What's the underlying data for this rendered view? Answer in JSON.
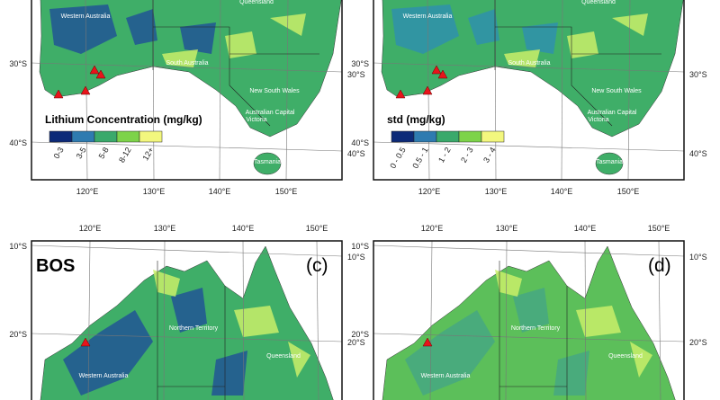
{
  "panels": [
    {
      "states": [
        "Western Australia",
        "Queensland",
        "South Australia",
        "New South Wales",
        "Australian Capital",
        "Victoria",
        "Tasmania"
      ],
      "left_lat": [
        "30°S",
        "40°S"
      ],
      "right_lat": [
        "30°S",
        "40°S"
      ],
      "lon": [
        "120°E",
        "130°E",
        "140°E",
        "150°E"
      ],
      "legend": {
        "title": "Lithium Concentration (mg/kg)",
        "classes": [
          {
            "label": "0-3",
            "color": "#0c2a78"
          },
          {
            "label": "3-5",
            "color": "#2e7bb0"
          },
          {
            "label": "5-8",
            "color": "#3aa96b"
          },
          {
            "label": "8-12",
            "color": "#7dd34a"
          },
          {
            "label": "12+",
            "color": "#f3f77e"
          }
        ]
      }
    },
    {
      "states": [
        "Western Australia",
        "Queensland",
        "South Australia",
        "New South Wales",
        "Australian Capital",
        "Victoria",
        "Tasmania"
      ],
      "left_lat": [
        "30°S",
        "40°S"
      ],
      "right_lat": [
        "30°S",
        "40°S"
      ],
      "lon": [
        "120°E",
        "130°E",
        "140°E",
        "150°E"
      ],
      "legend": {
        "title": "std (mg/kg)",
        "classes": [
          {
            "label": "0 - 0.5",
            "color": "#0c2a78"
          },
          {
            "label": "0.5 - 1",
            "color": "#2e7bb0"
          },
          {
            "label": "1 - 2",
            "color": "#3aa96b"
          },
          {
            "label": "2 - 3",
            "color": "#7dd34a"
          },
          {
            "label": "3 - 4",
            "color": "#f3f77e"
          }
        ]
      }
    },
    {
      "label": "BOS",
      "tag": "(c)",
      "states": [
        "Northern Territory",
        "Queensland",
        "Western Australia"
      ],
      "left_lat": [
        "10°S",
        "20°S"
      ],
      "right_lat": [
        "10°S",
        "20°S"
      ],
      "lon": [
        "120°E",
        "130°E",
        "140°E",
        "150°E"
      ]
    },
    {
      "tag": "(d)",
      "states": [
        "Northern Territory",
        "Queensland",
        "Western Australia"
      ],
      "left_lat": [
        "10°S",
        "20°S"
      ],
      "right_lat": [
        "10°S",
        "20°S"
      ],
      "lon": [
        "120°E",
        "130°E",
        "140°E",
        "150°E"
      ]
    }
  ]
}
